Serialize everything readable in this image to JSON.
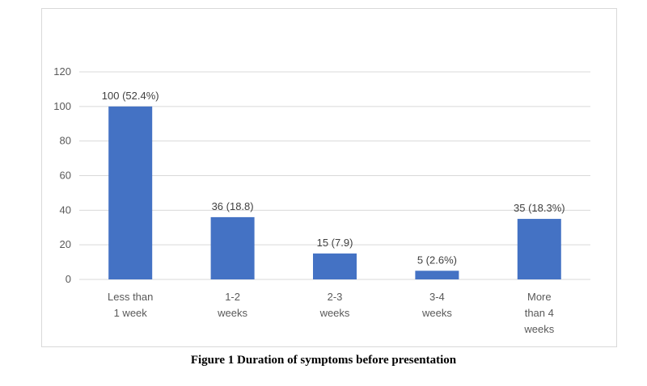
{
  "caption": "Figure 1 Duration of symptoms before presentation",
  "colors": {
    "bar": "#4472c4",
    "grid": "#d9d9d9"
  },
  "chart_data": {
    "type": "bar",
    "categories": [
      [
        "Less than",
        "1 week"
      ],
      [
        "1-2",
        "weeks"
      ],
      [
        "2-3",
        "weeks"
      ],
      [
        "3-4",
        "weeks"
      ],
      [
        "More",
        "than 4",
        "weeks"
      ]
    ],
    "values": [
      100,
      36,
      15,
      5,
      35
    ],
    "data_labels": [
      "100 (52.4%)",
      "36 (18.8)",
      "15 (7.9)",
      "5 (2.6%)",
      "35 (18.3%)"
    ],
    "ylim": [
      0,
      120
    ],
    "yticks": [
      0,
      20,
      40,
      60,
      80,
      100,
      120
    ],
    "grid": true,
    "legend": "none"
  }
}
